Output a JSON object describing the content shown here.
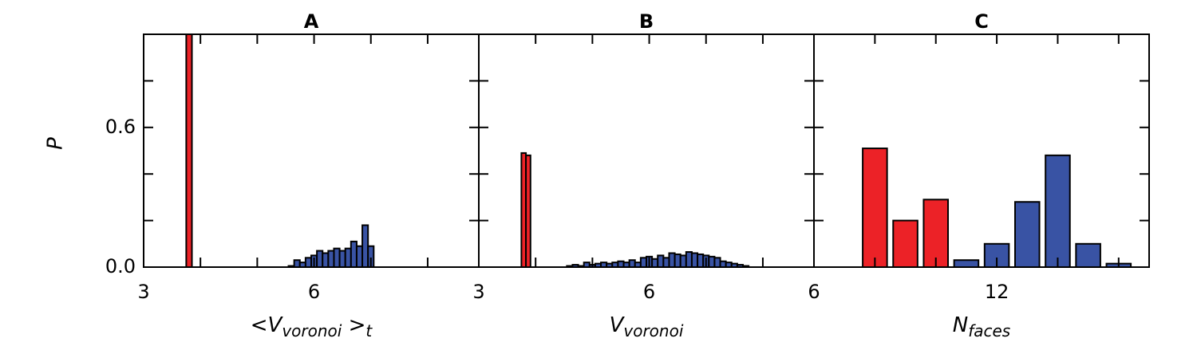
{
  "chart_data": [
    {
      "type": "bar",
      "title": "A",
      "ylabel": "P",
      "xlabel": [
        {
          "text": "<V",
          "sub": false
        },
        {
          "text": "voronoi",
          "sub": true
        },
        {
          "text": " >",
          "sub": false
        },
        {
          "text": "t",
          "sub": true
        }
      ],
      "xlim": [
        3,
        8.9
      ],
      "xticks": [
        3,
        6
      ],
      "xminor": [
        4,
        5,
        7,
        8
      ],
      "ylim": [
        0,
        1
      ],
      "yticks": [
        {
          "value": 0,
          "label": "0.0"
        },
        0.6
      ],
      "yminor": [
        0.2,
        0.4,
        0.8
      ],
      "series": [
        {
          "color": "#ec2227",
          "width": 0.1,
          "x": [
            3.8
          ],
          "values": [
            1.0
          ]
        },
        {
          "color": "#3953a4",
          "width": 0.1,
          "x": [
            5.6,
            5.7,
            5.8,
            5.9,
            6.0,
            6.1,
            6.2,
            6.3,
            6.4,
            6.5,
            6.6,
            6.7,
            6.8,
            6.9,
            7.0
          ],
          "values": [
            0.005,
            0.03,
            0.02,
            0.04,
            0.05,
            0.07,
            0.06,
            0.07,
            0.08,
            0.07,
            0.08,
            0.11,
            0.09,
            0.18,
            0.09
          ]
        }
      ]
    },
    {
      "type": "bar",
      "title": "B",
      "xlabel": [
        {
          "text": "V",
          "sub": false
        },
        {
          "text": "voronoi",
          "sub": true
        }
      ],
      "xlim": [
        3,
        8.9
      ],
      "xticks": [
        3,
        6
      ],
      "xminor": [
        4,
        5,
        7,
        8
      ],
      "ylim": [
        0,
        1
      ],
      "yminor": [
        0.2,
        0.4,
        0.6,
        0.8
      ],
      "series": [
        {
          "color": "#ec2227",
          "width": 0.08,
          "x": [
            3.79,
            3.87
          ],
          "values": [
            0.49,
            0.48
          ]
        },
        {
          "color": "#3953a4",
          "width": 0.1,
          "x": [
            4.6,
            4.7,
            4.8,
            4.9,
            5.0,
            5.1,
            5.2,
            5.3,
            5.4,
            5.5,
            5.6,
            5.7,
            5.8,
            5.9,
            6.0,
            6.1,
            6.2,
            6.3,
            6.4,
            6.5,
            6.6,
            6.7,
            6.8,
            6.9,
            7.0,
            7.1,
            7.2,
            7.3,
            7.4,
            7.5,
            7.6,
            7.7
          ],
          "values": [
            0.005,
            0.01,
            0.005,
            0.02,
            0.01,
            0.015,
            0.02,
            0.015,
            0.02,
            0.025,
            0.02,
            0.03,
            0.02,
            0.04,
            0.045,
            0.035,
            0.05,
            0.04,
            0.06,
            0.055,
            0.05,
            0.065,
            0.06,
            0.055,
            0.05,
            0.045,
            0.04,
            0.025,
            0.02,
            0.015,
            0.01,
            0.005
          ]
        }
      ]
    },
    {
      "type": "bar",
      "title": "C",
      "xlabel": [
        {
          "text": "N",
          "sub": false
        },
        {
          "text": "faces",
          "sub": true
        }
      ],
      "xlim": [
        6,
        17
      ],
      "xticks": [
        6,
        12
      ],
      "xminor": [
        8,
        10,
        14,
        16
      ],
      "ylim": [
        0,
        1
      ],
      "yminor": [
        0.2,
        0.4,
        0.6,
        0.8
      ],
      "series": [
        {
          "color": "#ec2227",
          "width": 0.8,
          "x": [
            8,
            9,
            10
          ],
          "values": [
            0.51,
            0.2,
            0.29
          ]
        },
        {
          "color": "#3953a4",
          "width": 0.8,
          "x": [
            11,
            12,
            13,
            14,
            15,
            16
          ],
          "values": [
            0.03,
            0.1,
            0.28,
            0.48,
            0.1,
            0.015
          ]
        }
      ]
    }
  ]
}
